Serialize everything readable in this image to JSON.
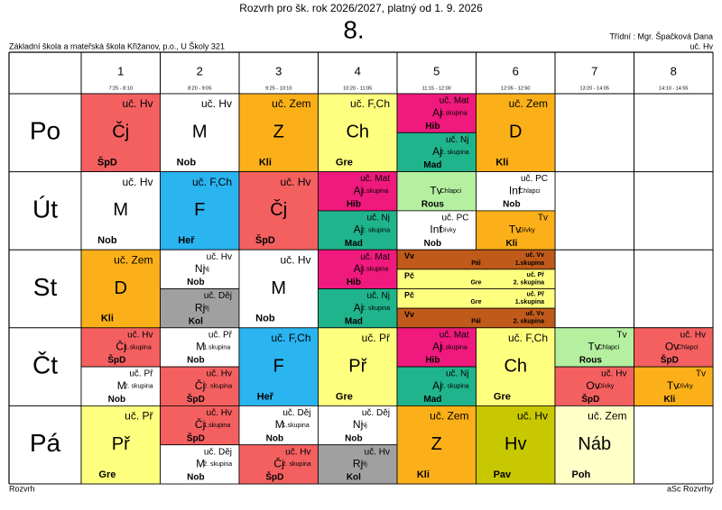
{
  "header": {
    "title": "Rozvrh pro šk. rok 2026/2027, platný od 1. 9. 2026",
    "class": "8.",
    "school": "Základní škola a mateřská škola Křižanov, p.o., U Školy 321",
    "class_teacher": "Třídní : Mgr. Špačková Dana",
    "room": "uč. Hv"
  },
  "periods": [
    {
      "number": "1",
      "time": "7:25 - 8:10"
    },
    {
      "number": "2",
      "time": "8:20 - 9:05"
    },
    {
      "number": "3",
      "time": "9:25 - 10:10"
    },
    {
      "number": "4",
      "time": "10:20 - 11:05"
    },
    {
      "number": "5",
      "time": "11:15 - 12:00"
    },
    {
      "number": "6",
      "time": "12:05 - 12:50"
    },
    {
      "number": "7",
      "time": "13:20 - 14:05"
    },
    {
      "number": "8",
      "time": "14:10 - 14:55"
    }
  ],
  "days": [
    {
      "name": "Po",
      "cells": [
        {
          "lessons": [
            {
              "room": "uč. Hv",
              "subject": "Čj",
              "teacher": "ŠpD",
              "color": "#f46060"
            }
          ]
        },
        {
          "lessons": [
            {
              "room": "uč. Hv",
              "subject": "M",
              "teacher": "Nob",
              "color": "#ffffff"
            }
          ]
        },
        {
          "lessons": [
            {
              "room": "uč. Zem",
              "subject": "Z",
              "teacher": "Kli",
              "color": "#fbb019"
            }
          ]
        },
        {
          "lessons": [
            {
              "room": "uč. F,Ch",
              "subject": "Ch",
              "teacher": "Gre",
              "color": "#ffff7f"
            }
          ]
        },
        {
          "lessons": [
            {
              "room": "uč. Mat",
              "subject": "Aj",
              "group": "1.skupina",
              "teacher": "Hib",
              "color": "#f0197d"
            },
            {
              "room": "uč. Nj",
              "subject": "Aj",
              "group": "2. skupina",
              "teacher": "Mad",
              "color": "#20b48c"
            }
          ]
        },
        {
          "lessons": [
            {
              "room": "uč. Zem",
              "subject": "D",
              "teacher": "Kli",
              "color": "#fbb019"
            }
          ]
        },
        null,
        null
      ]
    },
    {
      "name": "Út",
      "cells": [
        {
          "lessons": [
            {
              "room": "uč. Hv",
              "subject": "M",
              "teacher": "Nob",
              "color": "#ffffff"
            }
          ]
        },
        {
          "lessons": [
            {
              "room": "uč. F,Ch",
              "subject": "F",
              "teacher": "Heř",
              "color": "#2ab4f0"
            }
          ]
        },
        {
          "lessons": [
            {
              "room": "uč. Hv",
              "subject": "Čj",
              "teacher": "ŠpD",
              "color": "#f46060"
            }
          ]
        },
        {
          "lessons": [
            {
              "room": "uč. Mat",
              "subject": "Aj",
              "group": "1.skupina",
              "teacher": "Hib",
              "color": "#f0197d"
            },
            {
              "room": "uč. Nj",
              "subject": "Aj",
              "group": "2. skupina",
              "teacher": "Mad",
              "color": "#20b48c"
            }
          ]
        },
        {
          "lessons": [
            {
              "subject": "Tv",
              "group": "Chlapci",
              "teacher": "Rous",
              "color": "#b4f0a0"
            },
            {
              "room": "uč. PC",
              "subject": "Inf",
              "group": "Dívky",
              "teacher": "Nob",
              "color": "#ffffff"
            }
          ]
        },
        {
          "lessons": [
            {
              "room": "uč. PC",
              "subject": "Inf",
              "group": "Chlapci",
              "teacher": "Nob",
              "color": "#ffffff"
            },
            {
              "room": "Tv",
              "subject": "Tv",
              "group": "Dívky",
              "teacher": "Kli",
              "color": "#fbb019"
            }
          ]
        },
        null,
        null
      ]
    },
    {
      "name": "St",
      "cells": [
        {
          "lessons": [
            {
              "room": "uč. Zem",
              "subject": "D",
              "teacher": "Kli",
              "color": "#fbb019"
            }
          ]
        },
        {
          "lessons": [
            {
              "room": "uč. Hv",
              "subject": "Nj",
              "group": "Nj",
              "teacher": "Nob",
              "color": "#ffffff"
            },
            {
              "room": "uč. Děj",
              "subject": "Rj",
              "group": "Rj",
              "teacher": "Kol",
              "color": "#a0a0a0"
            }
          ]
        },
        {
          "lessons": [
            {
              "room": "uč. Hv",
              "subject": "M",
              "teacher": "Nob",
              "color": "#ffffff"
            }
          ]
        },
        {
          "lessons": [
            {
              "room": "uč. Mat",
              "subject": "Aj",
              "group": "1.skupina",
              "teacher": "Hib",
              "color": "#f0197d"
            },
            {
              "room": "uč. Nj",
              "subject": "Aj",
              "group": "2. skupina",
              "teacher": "Mad",
              "color": "#20b48c"
            }
          ]
        },
        {
          "span": 2,
          "lessons": [
            {
              "room": "uč. Vv",
              "subject": "Vv",
              "group": "1.skupina",
              "teacher": "Pál",
              "color": "#c05a1a"
            },
            {
              "room": "uč. Př",
              "subject": "Pč",
              "group": "2. skupina",
              "teacher": "Gre",
              "color": "#ffff7f"
            },
            {
              "room": "uč. Př",
              "subject": "Pč",
              "group": "1.skupina",
              "teacher": "Gre",
              "color": "#ffff7f"
            },
            {
              "room": "uč. Vv",
              "subject": "Vv",
              "group": "2. skupina",
              "teacher": "Pál",
              "color": "#c05a1a"
            }
          ]
        },
        null,
        null
      ]
    },
    {
      "name": "Čt",
      "cells": [
        {
          "lessons": [
            {
              "room": "uč. Hv",
              "subject": "Čj",
              "group": "1.skupina",
              "teacher": "ŠpD",
              "color": "#f46060"
            },
            {
              "room": "uč. Př",
              "subject": "M",
              "group": "2. skupina",
              "teacher": "Nob",
              "color": "#ffffff"
            }
          ]
        },
        {
          "lessons": [
            {
              "room": "uč. Př",
              "subject": "M",
              "group": "1.skupina",
              "teacher": "Nob",
              "color": "#ffffff"
            },
            {
              "room": "uč. Hv",
              "subject": "Čj",
              "group": "2. skupina",
              "teacher": "ŠpD",
              "color": "#f46060"
            }
          ]
        },
        {
          "lessons": [
            {
              "room": "uč. F,Ch",
              "subject": "F",
              "teacher": "Heř",
              "color": "#2ab4f0"
            }
          ]
        },
        {
          "lessons": [
            {
              "room": "uč. Př",
              "subject": "Př",
              "teacher": "Gre",
              "color": "#ffff7f"
            }
          ]
        },
        {
          "lessons": [
            {
              "room": "uč. Mat",
              "subject": "Aj",
              "group": "1.skupina",
              "teacher": "Hib",
              "color": "#f0197d"
            },
            {
              "room": "uč. Nj",
              "subject": "Aj",
              "group": "2. skupina",
              "teacher": "Mad",
              "color": "#20b48c"
            }
          ]
        },
        {
          "lessons": [
            {
              "room": "uč. F,Ch",
              "subject": "Ch",
              "teacher": "Gre",
              "color": "#ffff7f"
            }
          ]
        },
        {
          "lessons": [
            {
              "room": "Tv",
              "subject": "Tv",
              "group": "Chlapci",
              "teacher": "Rous",
              "color": "#b4f0a0"
            },
            {
              "room": "uč. Hv",
              "subject": "Ov",
              "group": "Dívky",
              "teacher": "ŠpD",
              "color": "#f46060"
            }
          ]
        },
        {
          "lessons": [
            {
              "room": "uč. Hv",
              "subject": "Ov",
              "group": "Chlapci",
              "teacher": "ŠpD",
              "color": "#f46060"
            },
            {
              "room": "Tv",
              "subject": "Tv",
              "group": "Dívky",
              "teacher": "Kli",
              "color": "#fbb019"
            }
          ]
        }
      ]
    },
    {
      "name": "Pá",
      "cells": [
        {
          "lessons": [
            {
              "room": "uč. Př",
              "subject": "Př",
              "teacher": "Gre",
              "color": "#ffff7f"
            }
          ]
        },
        {
          "lessons": [
            {
              "room": "uč. Hv",
              "subject": "Čj",
              "group": "1.skupina",
              "teacher": "ŠpD",
              "color": "#f46060"
            },
            {
              "room": "uč. Děj",
              "subject": "M",
              "group": "2. skupina",
              "teacher": "Nob",
              "color": "#ffffff"
            }
          ]
        },
        {
          "lessons": [
            {
              "room": "uč. Děj",
              "subject": "M",
              "group": "1.skupina",
              "teacher": "Nob",
              "color": "#ffffff"
            },
            {
              "room": "uč. Hv",
              "subject": "Čj",
              "group": "2. skupina",
              "teacher": "ŠpD",
              "color": "#f46060"
            }
          ]
        },
        {
          "lessons": [
            {
              "room": "uč. Děj",
              "subject": "Nj",
              "group": "Nj",
              "teacher": "Nob",
              "color": "#ffffff"
            },
            {
              "room": "uč. Hv",
              "subject": "Rj",
              "group": "Rj",
              "teacher": "Kol",
              "color": "#a0a0a0"
            }
          ]
        },
        {
          "lessons": [
            {
              "room": "uč. Zem",
              "subject": "Z",
              "teacher": "Kli",
              "color": "#fbb019"
            }
          ]
        },
        {
          "lessons": [
            {
              "room": "uč. Hv",
              "subject": "Hv",
              "teacher": "Pav",
              "color": "#c8c800"
            }
          ]
        },
        {
          "lessons": [
            {
              "room": "uč. Zem",
              "subject": "Náb",
              "teacher": "Poh",
              "color": "#ffffc8"
            }
          ]
        },
        null
      ]
    }
  ],
  "footer": {
    "left": "Rozvrh",
    "right": "aSc Rozvrhy"
  }
}
